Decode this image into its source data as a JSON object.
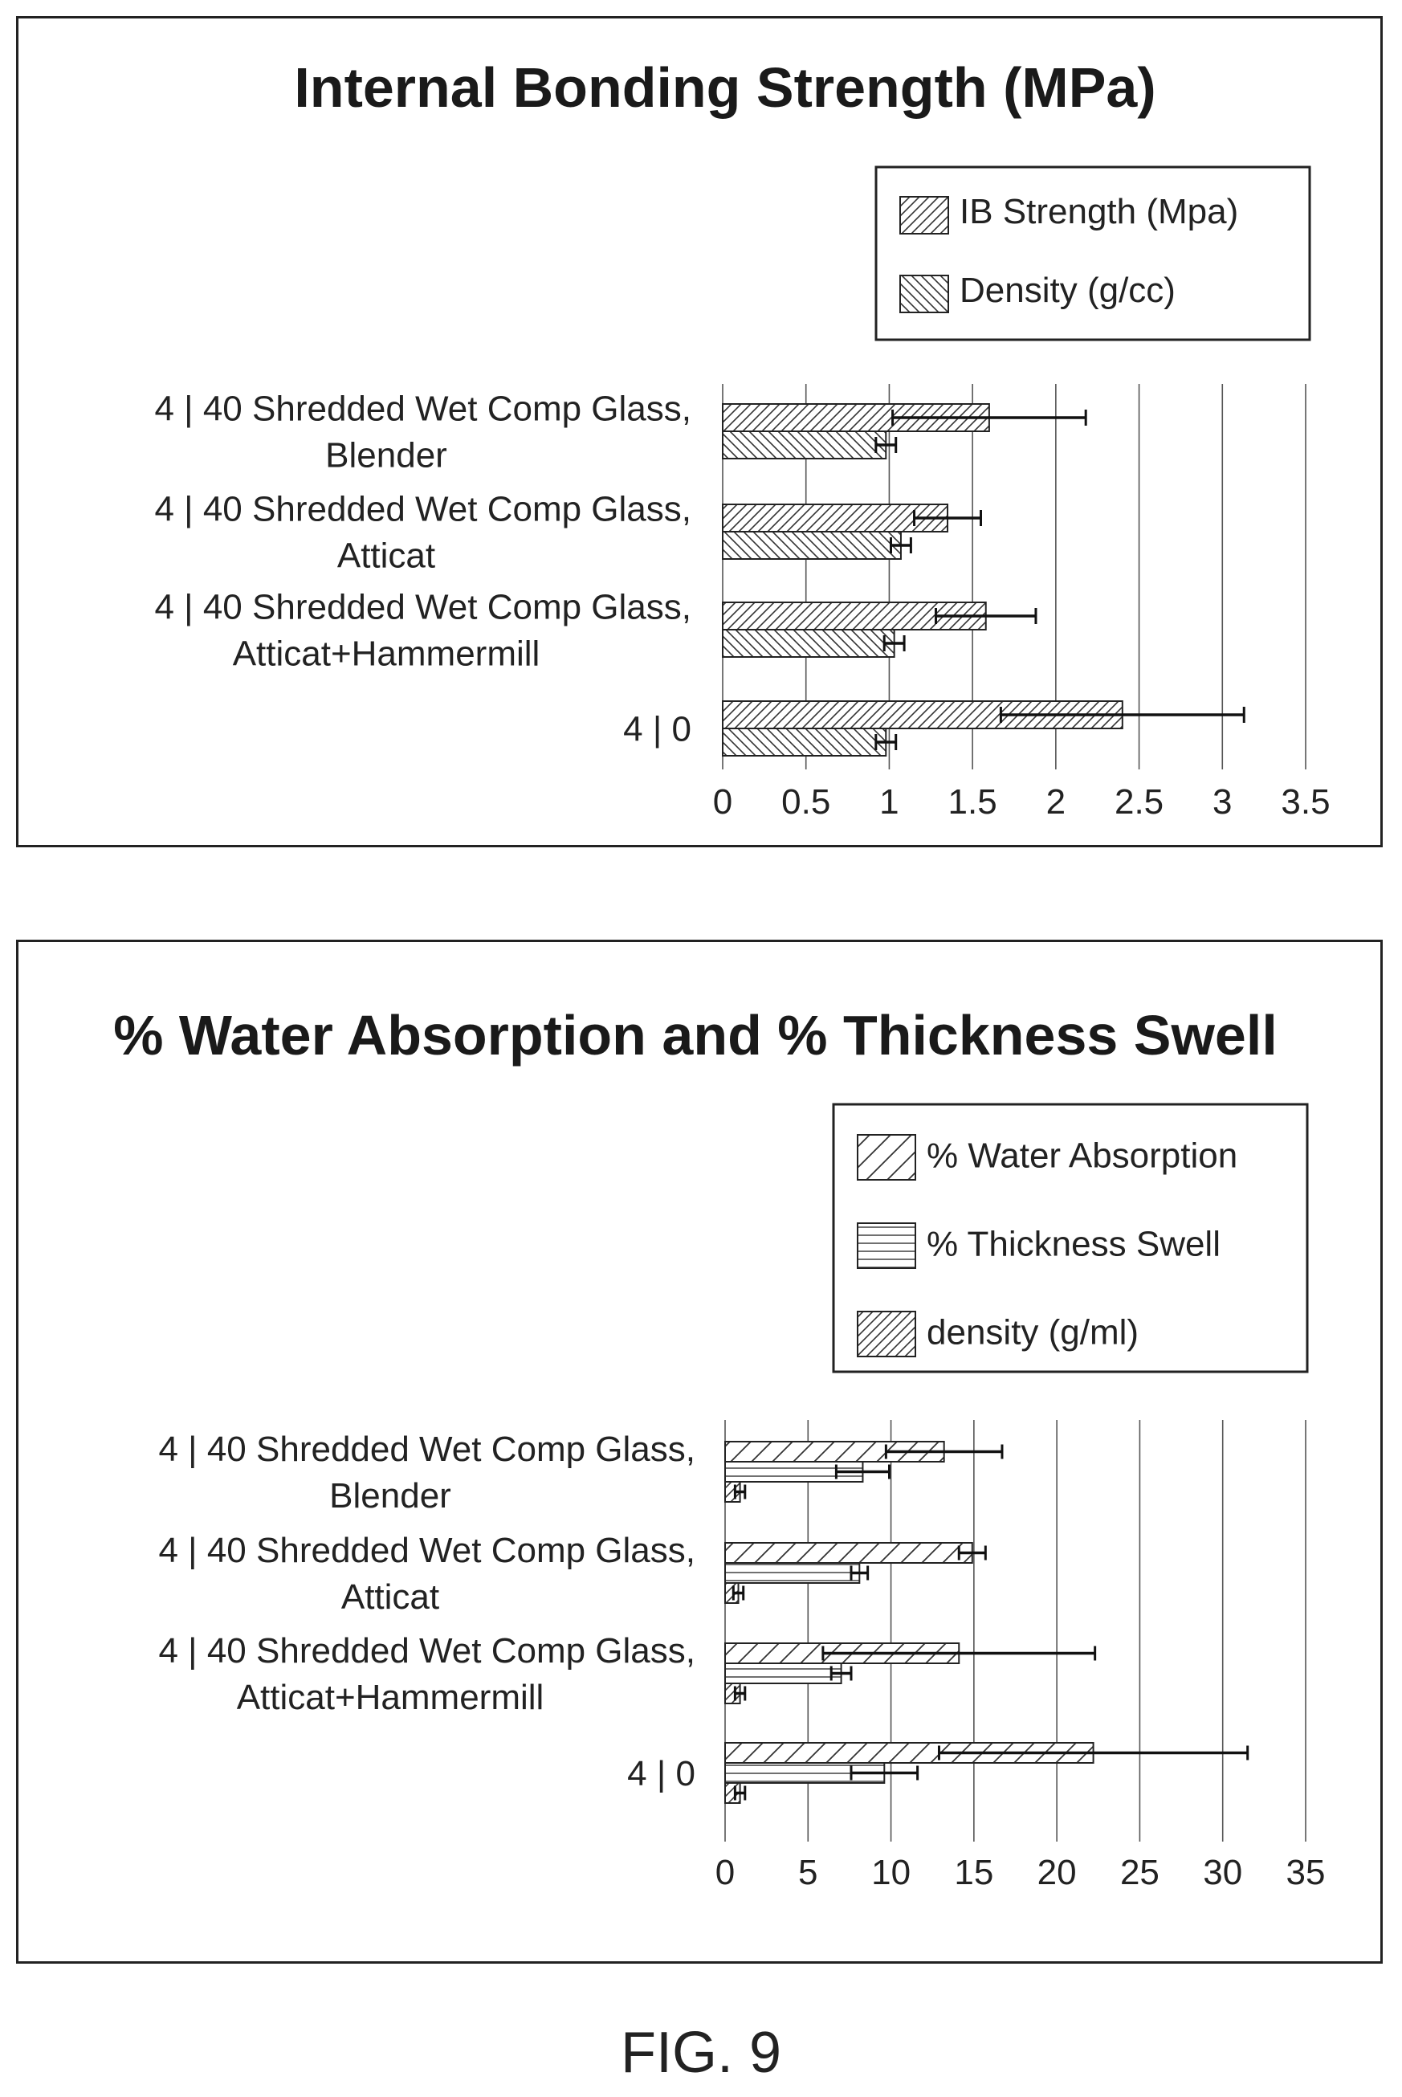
{
  "figure_caption": "FIG. 9",
  "chart_data": [
    {
      "type": "bar",
      "orientation": "horizontal",
      "title": "Internal Bonding Strength (MPa)",
      "categories": [
        [
          "4 | 40 Shredded Wet Comp Glass,",
          "Blender"
        ],
        [
          "4 | 40 Shredded Wet Comp Glass,",
          "Atticat"
        ],
        [
          "4 | 40 Shredded Wet Comp Glass,",
          "Atticat+Hammermill"
        ],
        [
          "4 | 0"
        ]
      ],
      "series": [
        {
          "name": "IB Strength (Mpa)",
          "pattern": "diag-up-dense",
          "values": [
            1.6,
            1.35,
            1.58,
            2.4
          ],
          "errors": [
            0.58,
            0.2,
            0.3,
            0.73
          ]
        },
        {
          "name": "Density (g/cc)",
          "pattern": "diag-down",
          "values": [
            0.98,
            1.07,
            1.03,
            0.98
          ],
          "errors": [
            0.06,
            0.06,
            0.06,
            0.06
          ]
        }
      ],
      "xlim": [
        0,
        3.5
      ],
      "ticks": [
        "0",
        "0.5",
        "1",
        "1.5",
        "2",
        "2.5",
        "3",
        "3.5"
      ],
      "grid": "vertical",
      "legend_position": "top-right",
      "xlabel": "",
      "ylabel": ""
    },
    {
      "type": "bar",
      "orientation": "horizontal",
      "title": "% Water Absorption and % Thickness Swell",
      "categories": [
        [
          "4 | 40 Shredded Wet Comp Glass,",
          "Blender"
        ],
        [
          "4 | 40 Shredded Wet Comp Glass,",
          "Atticat"
        ],
        [
          "4 | 40 Shredded Wet Comp Glass,",
          "Atticat+Hammermill"
        ],
        [
          "4 | 0"
        ]
      ],
      "series": [
        {
          "name": "% Water Absorption",
          "pattern": "diag-up-sparse",
          "values": [
            13.2,
            14.9,
            14.1,
            22.2
          ],
          "errors": [
            3.5,
            0.8,
            8.2,
            9.3
          ]
        },
        {
          "name": "% Thickness Swell",
          "pattern": "horizontal",
          "values": [
            8.3,
            8.1,
            7.0,
            9.6
          ],
          "errors": [
            1.6,
            0.5,
            0.6,
            2.0
          ]
        },
        {
          "name": "density (g/ml)",
          "pattern": "diag-up-dense",
          "values": [
            0.9,
            0.8,
            0.9,
            0.9
          ],
          "errors": [
            0.3,
            0.3,
            0.3,
            0.3
          ]
        }
      ],
      "xlim": [
        0,
        35
      ],
      "ticks": [
        "0",
        "5",
        "10",
        "15",
        "20",
        "25",
        "30",
        "35"
      ],
      "grid": "vertical",
      "legend_position": "top-right",
      "xlabel": "",
      "ylabel": ""
    }
  ]
}
